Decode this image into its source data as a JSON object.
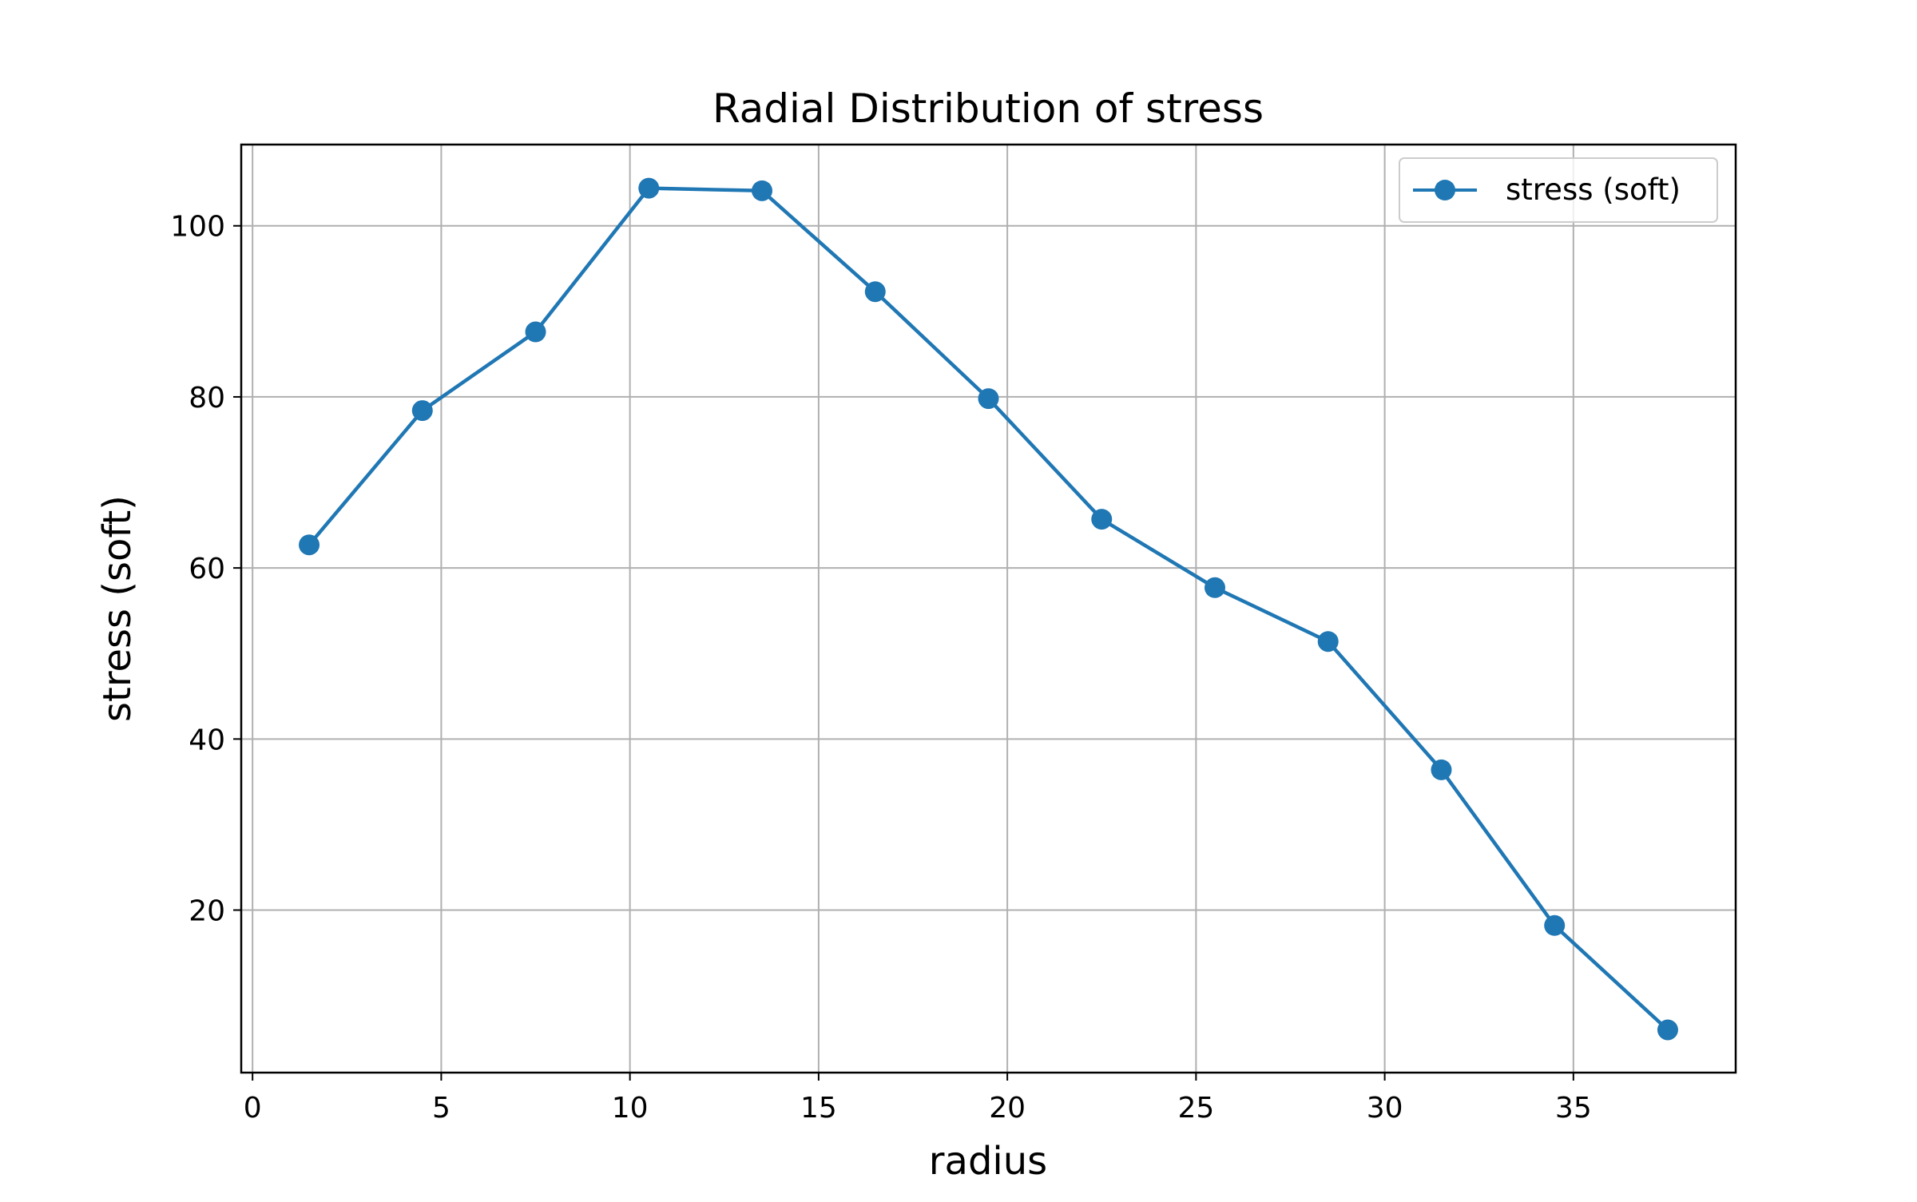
{
  "chart_data": {
    "type": "line",
    "title": "Radial Distribution of stress",
    "xlabel": "radius",
    "ylabel": "stress (soft)",
    "xlim": [
      -0.3,
      39.3
    ],
    "ylim": [
      1.0,
      109.5
    ],
    "xticks": [
      0,
      5,
      10,
      15,
      20,
      25,
      30,
      35
    ],
    "yticks": [
      20,
      40,
      60,
      80,
      100
    ],
    "grid": true,
    "legend_position": "top-right",
    "series": [
      {
        "name": "stress (soft)",
        "color": "#1f77b4",
        "marker": "circle",
        "x": [
          1.5,
          4.5,
          7.5,
          10.5,
          13.5,
          16.5,
          19.5,
          22.5,
          25.5,
          28.5,
          31.5,
          34.5,
          37.5
        ],
        "y": [
          62.7,
          78.4,
          87.6,
          104.4,
          104.1,
          92.3,
          79.8,
          65.7,
          57.7,
          51.4,
          36.4,
          18.2,
          6.0
        ]
      }
    ]
  }
}
